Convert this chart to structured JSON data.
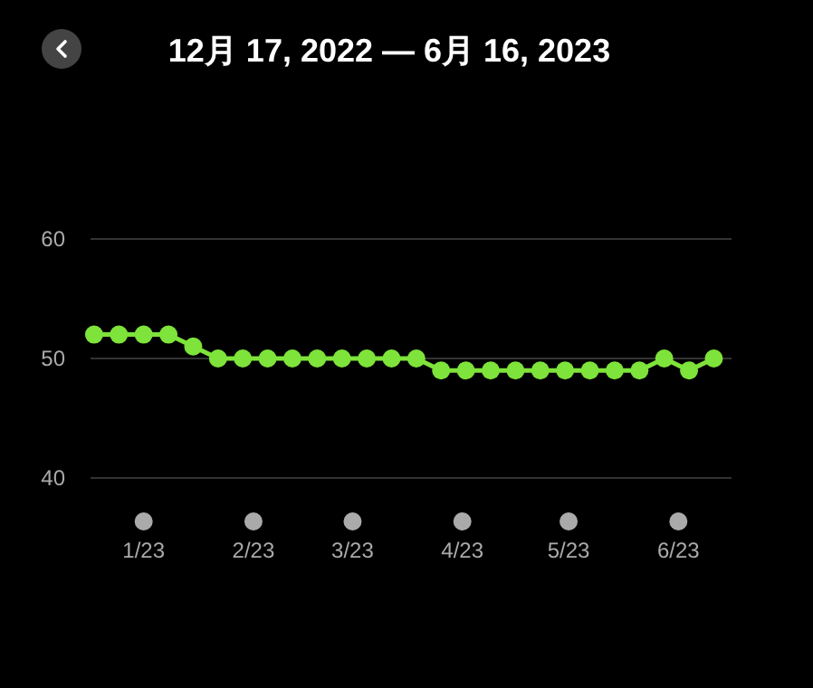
{
  "chart_data": {
    "type": "line",
    "title": "12月 17, 2022 — 6月 16, 2023",
    "x": [
      "2022-12-17",
      "2022-12-24",
      "2022-12-31",
      "2023-01-07",
      "2023-01-14",
      "2023-01-21",
      "2023-01-28",
      "2023-02-04",
      "2023-02-11",
      "2023-02-18",
      "2023-02-25",
      "2023-03-04",
      "2023-03-11",
      "2023-03-18",
      "2023-03-25",
      "2023-04-01",
      "2023-04-08",
      "2023-04-15",
      "2023-04-22",
      "2023-04-29",
      "2023-05-06",
      "2023-05-13",
      "2023-05-20",
      "2023-05-27",
      "2023-06-03",
      "2023-06-10"
    ],
    "series": [
      {
        "color": "#7ee33a",
        "values": [
          52,
          52,
          52,
          52,
          51,
          50,
          50,
          50,
          50,
          50,
          50,
          50,
          50,
          50,
          49,
          49,
          49,
          49,
          49,
          49,
          49,
          49,
          49,
          50,
          49,
          50
        ]
      }
    ],
    "xlim": [
      "2022-12-16",
      "2023-06-15"
    ],
    "xticks": [
      {
        "value": "2022-12-31",
        "label": "1/23"
      },
      {
        "value": "2023-01-31",
        "label": "2/23"
      },
      {
        "value": "2023-02-28",
        "label": "3/23"
      },
      {
        "value": "2023-03-31",
        "label": "4/23"
      },
      {
        "value": "2023-04-30",
        "label": "5/23"
      },
      {
        "value": "2023-05-31",
        "label": "6/23"
      }
    ],
    "ylim": [
      40,
      60
    ],
    "yticks": [
      40,
      50,
      60
    ],
    "grid": "y",
    "marker": "circle",
    "line_style": "solid"
  }
}
